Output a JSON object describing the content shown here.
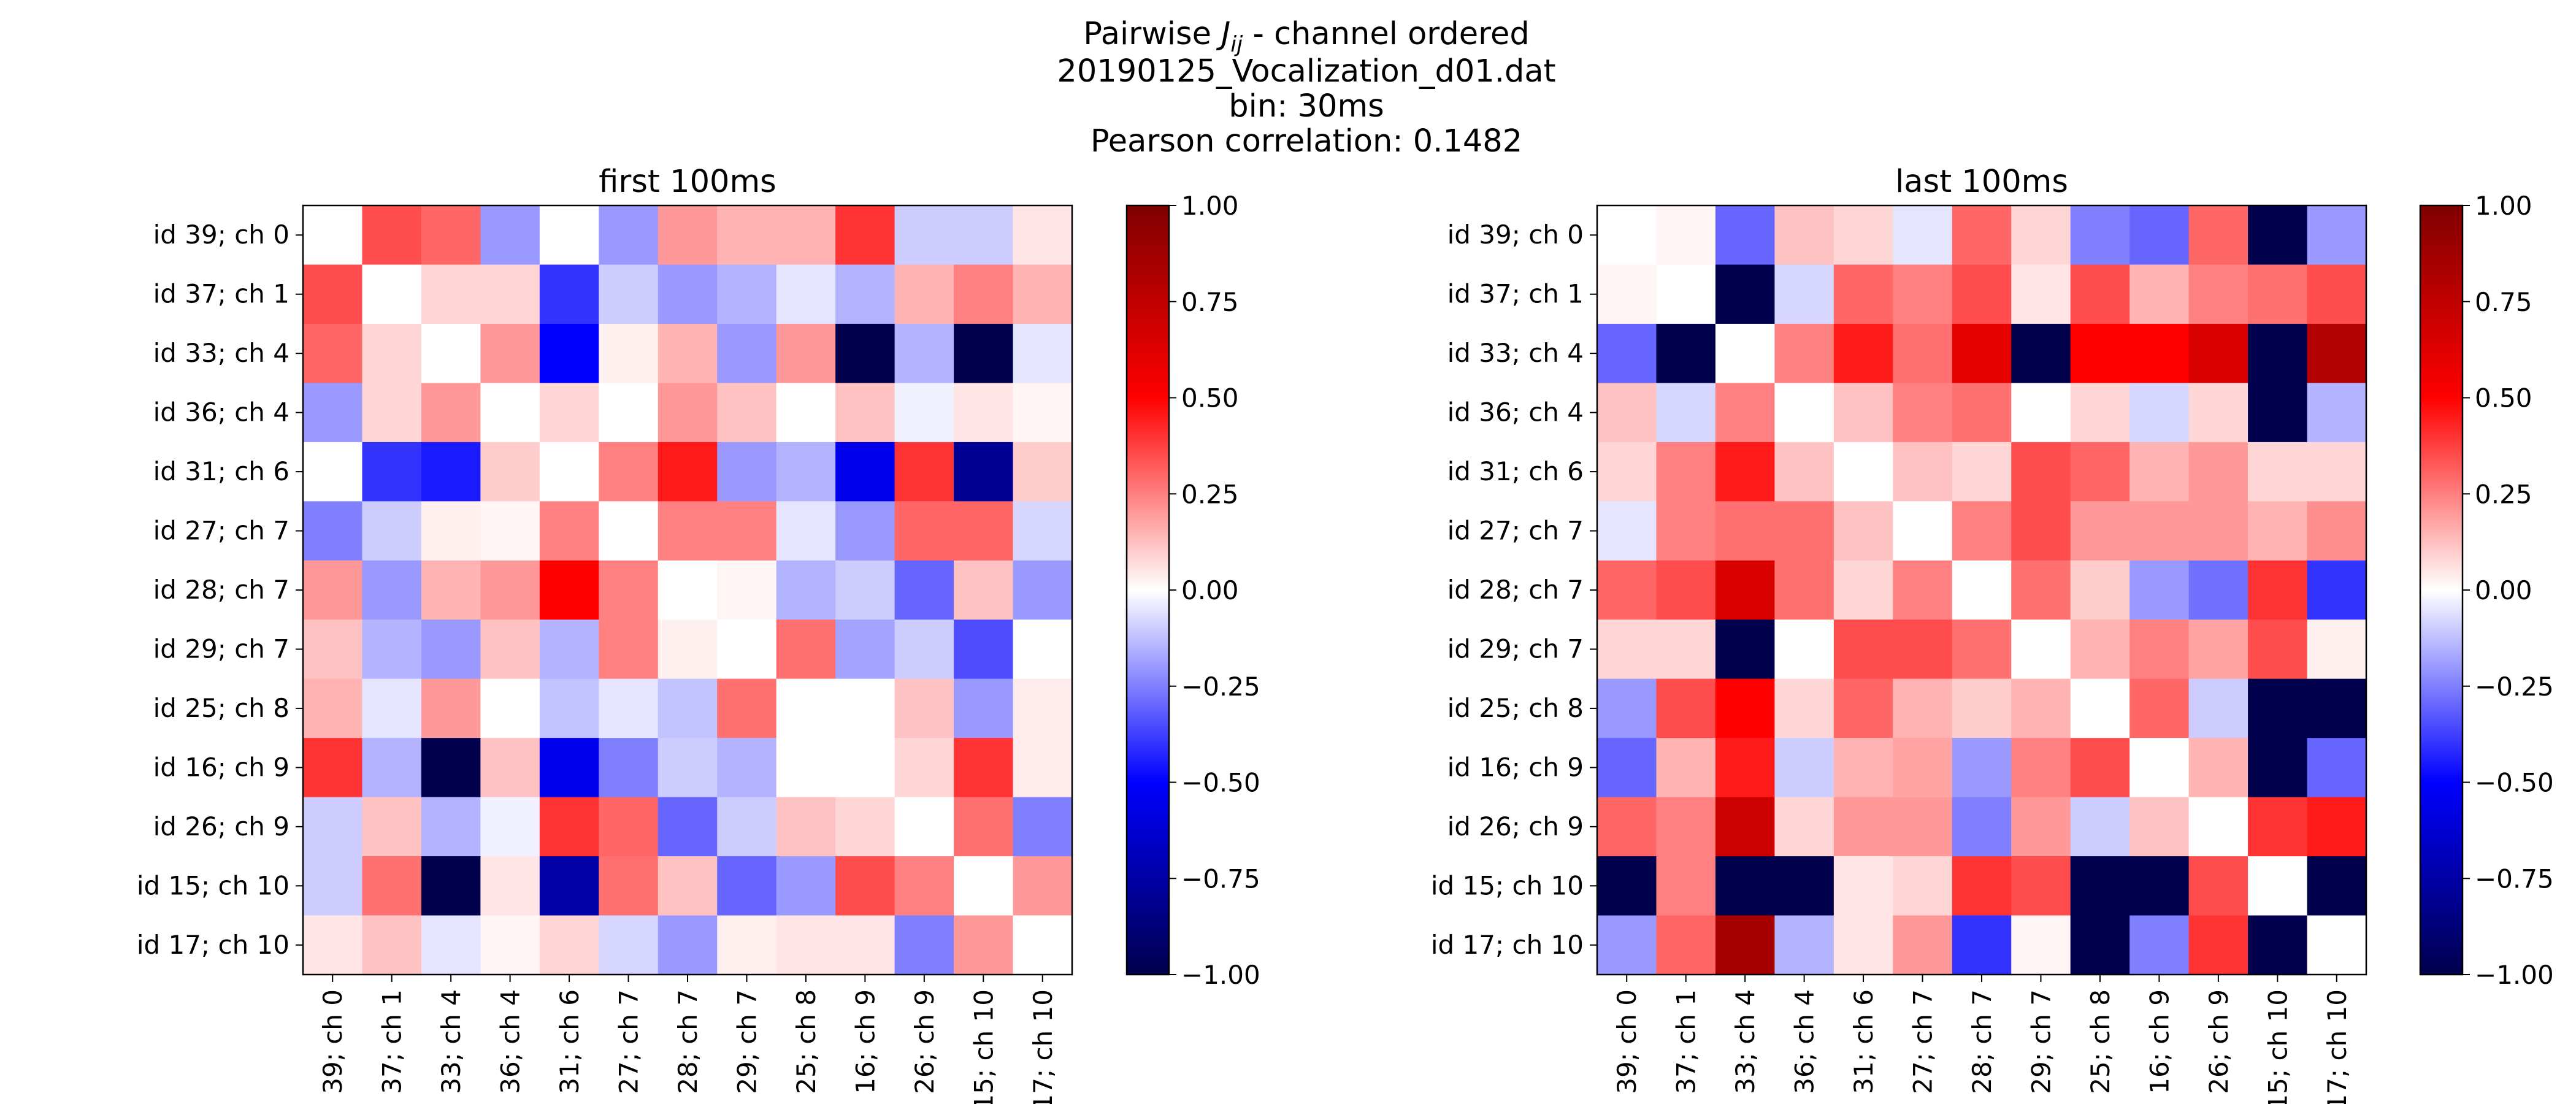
{
  "figure": {
    "title_lines": [
      {
        "text": "Pairwise ",
        "math": "J",
        "sub": "ij",
        "rest": " - channel ordered"
      },
      {
        "text": "20190125_Vocalization_d01.dat"
      },
      {
        "text": "bin: 30ms"
      },
      {
        "text": "Pearson correlation: 0.1482"
      }
    ]
  },
  "chart_data": [
    {
      "type": "heatmap",
      "title": "first 100ms",
      "colormap": "seismic",
      "vmin": -1.0,
      "vmax": 1.0,
      "colorbar_ticks": [
        "1.00",
        "0.75",
        "0.50",
        "0.25",
        "0.00",
        "−0.25",
        "−0.50",
        "−0.75",
        "−1.00"
      ],
      "colorbar_values": [
        1.0,
        0.75,
        0.5,
        0.25,
        0.0,
        -0.25,
        -0.5,
        -0.75,
        -1.0
      ],
      "row_labels": [
        "id 39; ch 0",
        "id 37; ch 1",
        "id 33; ch 4",
        "id 36; ch 4",
        "id 31; ch 6",
        "id 27; ch 7",
        "id 28; ch 7",
        "id 29; ch 7",
        "id 25; ch 8",
        "id 16; ch 9",
        "id 26; ch 9",
        "id 15; ch 10",
        "id 17; ch 10"
      ],
      "col_labels": [
        "id 39; ch 0",
        "id 37; ch 1",
        "id 33; ch 4",
        "id 36; ch 4",
        "id 31; ch 6",
        "id 27; ch 7",
        "id 28; ch 7",
        "id 29; ch 7",
        "id 25; ch 8",
        "id 16; ch 9",
        "id 26; ch 9",
        "id 15; ch 10",
        "id 17; ch 10"
      ],
      "matrix": [
        [
          0.0,
          0.35,
          0.3,
          -0.2,
          0.0,
          -0.2,
          0.2,
          0.15,
          0.15,
          0.4,
          -0.1,
          -0.1,
          0.05
        ],
        [
          0.35,
          0.0,
          0.08,
          0.08,
          -0.4,
          -0.1,
          -0.2,
          -0.15,
          -0.05,
          -0.15,
          0.15,
          0.25,
          0.15
        ],
        [
          0.3,
          0.08,
          0.0,
          0.2,
          -0.5,
          0.03,
          0.15,
          -0.2,
          0.2,
          -1.0,
          -0.15,
          -1.0,
          -0.05
        ],
        [
          -0.2,
          0.08,
          0.2,
          0.0,
          0.08,
          0.0,
          0.2,
          0.12,
          0.0,
          0.12,
          -0.03,
          0.05,
          0.02
        ],
        [
          0.0,
          -0.4,
          -0.45,
          0.1,
          0.0,
          0.25,
          0.45,
          -0.2,
          -0.15,
          -0.55,
          0.4,
          -0.8,
          0.1
        ],
        [
          -0.25,
          -0.1,
          0.03,
          0.02,
          0.25,
          0.0,
          0.25,
          0.25,
          -0.05,
          -0.2,
          0.3,
          0.3,
          -0.08
        ],
        [
          0.2,
          -0.2,
          0.15,
          0.2,
          0.5,
          0.25,
          0.0,
          0.02,
          -0.15,
          -0.1,
          -0.3,
          0.12,
          -0.2
        ],
        [
          0.12,
          -0.15,
          -0.2,
          0.12,
          -0.15,
          0.25,
          0.03,
          0.0,
          0.28,
          -0.18,
          -0.1,
          -0.35,
          0.0
        ],
        [
          0.15,
          -0.05,
          0.2,
          0.0,
          -0.12,
          -0.05,
          -0.12,
          0.28,
          0.0,
          0.0,
          0.12,
          -0.2,
          0.04
        ],
        [
          0.4,
          -0.15,
          -1.0,
          0.12,
          -0.55,
          -0.25,
          -0.1,
          -0.15,
          0.0,
          0.0,
          0.08,
          0.4,
          0.04
        ],
        [
          -0.1,
          0.12,
          -0.15,
          -0.03,
          0.4,
          0.3,
          -0.3,
          -0.1,
          0.12,
          0.08,
          0.0,
          0.28,
          -0.25
        ],
        [
          -0.1,
          0.28,
          -1.0,
          0.05,
          -0.75,
          0.28,
          0.12,
          -0.3,
          -0.2,
          0.35,
          0.25,
          0.0,
          0.2
        ],
        [
          0.05,
          0.12,
          -0.05,
          0.02,
          0.08,
          -0.08,
          -0.2,
          0.03,
          0.05,
          0.05,
          -0.25,
          0.2,
          0.0
        ]
      ]
    },
    {
      "type": "heatmap",
      "title": "last 100ms",
      "colormap": "seismic",
      "vmin": -1.0,
      "vmax": 1.0,
      "colorbar_ticks": [
        "1.00",
        "0.75",
        "0.50",
        "0.25",
        "0.00",
        "−0.25",
        "−0.50",
        "−0.75",
        "−1.00"
      ],
      "colorbar_values": [
        1.0,
        0.75,
        0.5,
        0.25,
        0.0,
        -0.25,
        -0.5,
        -0.75,
        -1.0
      ],
      "row_labels": [
        "id 39; ch 0",
        "id 37; ch 1",
        "id 33; ch 4",
        "id 36; ch 4",
        "id 31; ch 6",
        "id 27; ch 7",
        "id 28; ch 7",
        "id 29; ch 7",
        "id 25; ch 8",
        "id 16; ch 9",
        "id 26; ch 9",
        "id 15; ch 10",
        "id 17; ch 10"
      ],
      "col_labels": [
        "id 39; ch 0",
        "id 37; ch 1",
        "id 33; ch 4",
        "id 36; ch 4",
        "id 31; ch 6",
        "id 27; ch 7",
        "id 28; ch 7",
        "id 29; ch 7",
        "id 25; ch 8",
        "id 16; ch 9",
        "id 26; ch 9",
        "id 15; ch 10",
        "id 17; ch 10"
      ],
      "matrix": [
        [
          0.0,
          0.02,
          -0.3,
          0.12,
          0.08,
          -0.05,
          0.3,
          0.08,
          -0.25,
          -0.3,
          0.3,
          -1.0,
          -0.2
        ],
        [
          0.02,
          0.0,
          -1.0,
          -0.08,
          0.3,
          0.25,
          0.35,
          0.05,
          0.35,
          0.15,
          0.25,
          0.28,
          0.35
        ],
        [
          -0.3,
          -1.0,
          0.0,
          0.25,
          0.45,
          0.28,
          0.6,
          -1.0,
          0.5,
          0.5,
          0.65,
          -1.0,
          0.8
        ],
        [
          0.12,
          -0.08,
          0.25,
          0.0,
          0.12,
          0.25,
          0.28,
          0.0,
          0.08,
          -0.08,
          0.08,
          -1.0,
          -0.15
        ],
        [
          0.08,
          0.25,
          0.45,
          0.12,
          0.0,
          0.12,
          0.08,
          0.35,
          0.3,
          0.15,
          0.2,
          0.08,
          0.08
        ],
        [
          -0.05,
          0.25,
          0.28,
          0.28,
          0.12,
          0.0,
          0.25,
          0.35,
          0.2,
          0.2,
          0.2,
          0.15,
          0.22
        ],
        [
          0.3,
          0.35,
          0.65,
          0.28,
          0.08,
          0.25,
          0.0,
          0.28,
          0.1,
          -0.2,
          -0.28,
          0.4,
          -0.4
        ],
        [
          0.08,
          0.08,
          -1.0,
          0.0,
          0.35,
          0.35,
          0.28,
          0.0,
          0.15,
          0.25,
          0.18,
          0.35,
          0.03
        ],
        [
          -0.2,
          0.35,
          0.5,
          0.08,
          0.3,
          0.15,
          0.1,
          0.15,
          0.0,
          0.3,
          -0.1,
          -1.0,
          -1.0
        ],
        [
          -0.3,
          0.15,
          0.45,
          -0.1,
          0.15,
          0.18,
          -0.2,
          0.25,
          0.35,
          0.0,
          0.15,
          -1.0,
          -0.3
        ],
        [
          0.3,
          0.25,
          0.7,
          0.08,
          0.2,
          0.2,
          -0.25,
          0.2,
          -0.1,
          0.12,
          0.0,
          0.4,
          0.45
        ],
        [
          -1.0,
          0.25,
          -1.0,
          -1.0,
          0.05,
          0.08,
          0.4,
          0.35,
          -1.0,
          -1.0,
          0.35,
          0.0,
          -1.0
        ],
        [
          -0.2,
          0.3,
          0.85,
          -0.15,
          0.05,
          0.2,
          -0.4,
          0.02,
          -1.0,
          -0.25,
          0.4,
          -1.0,
          0.0
        ]
      ]
    }
  ]
}
